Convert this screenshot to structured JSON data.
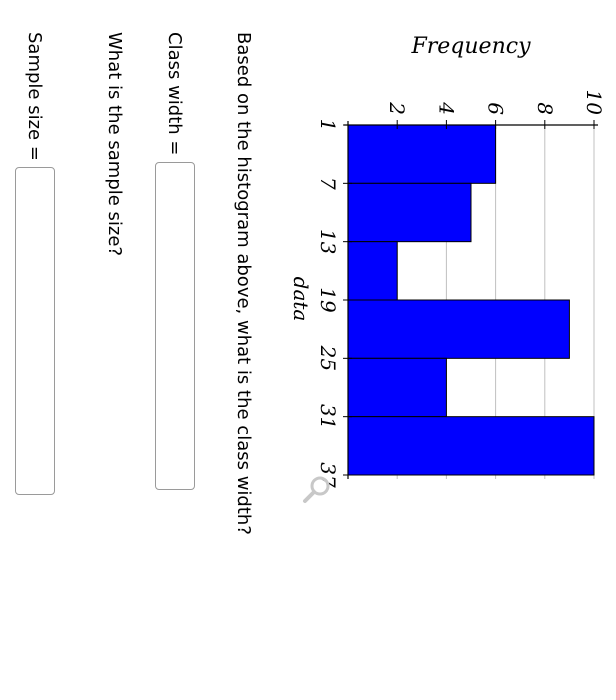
{
  "chart_data": {
    "type": "bar",
    "x_ticks": [
      1,
      7,
      13,
      19,
      25,
      31,
      37
    ],
    "bins": [
      [
        1,
        7
      ],
      [
        7,
        13
      ],
      [
        13,
        19
      ],
      [
        19,
        25
      ],
      [
        25,
        31
      ],
      [
        31,
        37
      ]
    ],
    "values": [
      6,
      5,
      2,
      9,
      4,
      10
    ],
    "y_ticks": [
      2,
      4,
      6,
      8,
      10
    ],
    "xlabel": "data",
    "ylabel": "Frequency",
    "xlim": [
      1,
      37
    ],
    "ylim": [
      0,
      10
    ],
    "grid": true,
    "bar_color": "#0000ff"
  },
  "zoom_icon": "magnifier-icon",
  "questions": {
    "q1": "Based on the histogram above, what is the class width?",
    "q1_field_label": "Class width =",
    "q2": "What is the sample size?",
    "q2_field_label": "Sample size ="
  }
}
